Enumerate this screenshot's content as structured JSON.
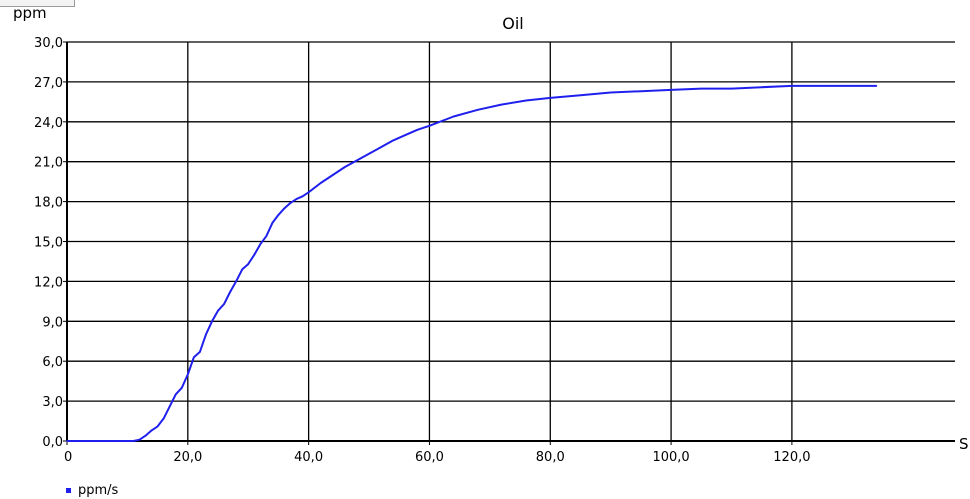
{
  "chart_data": {
    "type": "line",
    "title": "Oil",
    "ylabel": "ppm",
    "xlabel": "S",
    "xlim": [
      0,
      147
    ],
    "ylim": [
      0,
      30
    ],
    "x_ticks": [
      "0",
      "20,0",
      "40,0",
      "60,0",
      "80,0",
      "100,0",
      "120,0"
    ],
    "x_tick_values": [
      0,
      20,
      40,
      60,
      80,
      100,
      120
    ],
    "y_ticks": [
      "0,0",
      "3,0",
      "6,0",
      "9,0",
      "12,0",
      "15,0",
      "18,0",
      "21,0",
      "24,0",
      "27,0",
      "30,0"
    ],
    "y_tick_values": [
      0,
      3,
      6,
      9,
      12,
      15,
      18,
      21,
      24,
      27,
      30
    ],
    "grid": true,
    "legend_position": "bottom-left",
    "series": [
      {
        "name": "ppm/s",
        "color": "#2020ee",
        "x": [
          0,
          11,
          12,
          13,
          14,
          15,
          16,
          17,
          18,
          19,
          20,
          21,
          22,
          23,
          24,
          25,
          26,
          27,
          28,
          29,
          30,
          31,
          32,
          33,
          34,
          35,
          36,
          37,
          38,
          39,
          40,
          42,
          44,
          46,
          48,
          50,
          52,
          54,
          56,
          58,
          60,
          64,
          68,
          72,
          76,
          80,
          85,
          90,
          95,
          100,
          105,
          110,
          115,
          120,
          125,
          130,
          134
        ],
        "values": [
          0,
          0,
          0.1,
          0.4,
          0.8,
          1.1,
          1.7,
          2.6,
          3.5,
          4.0,
          5.0,
          6.3,
          6.7,
          8.0,
          9.0,
          9.8,
          10.3,
          11.2,
          12.0,
          12.9,
          13.3,
          14.0,
          14.8,
          15.4,
          16.4,
          17.0,
          17.5,
          17.9,
          18.2,
          18.4,
          18.7,
          19.4,
          20.0,
          20.6,
          21.1,
          21.6,
          22.1,
          22.6,
          23.0,
          23.4,
          23.7,
          24.4,
          24.9,
          25.3,
          25.6,
          25.8,
          26.0,
          26.2,
          26.3,
          26.4,
          26.5,
          26.5,
          26.6,
          26.7,
          26.7,
          26.7,
          26.7
        ]
      }
    ]
  }
}
